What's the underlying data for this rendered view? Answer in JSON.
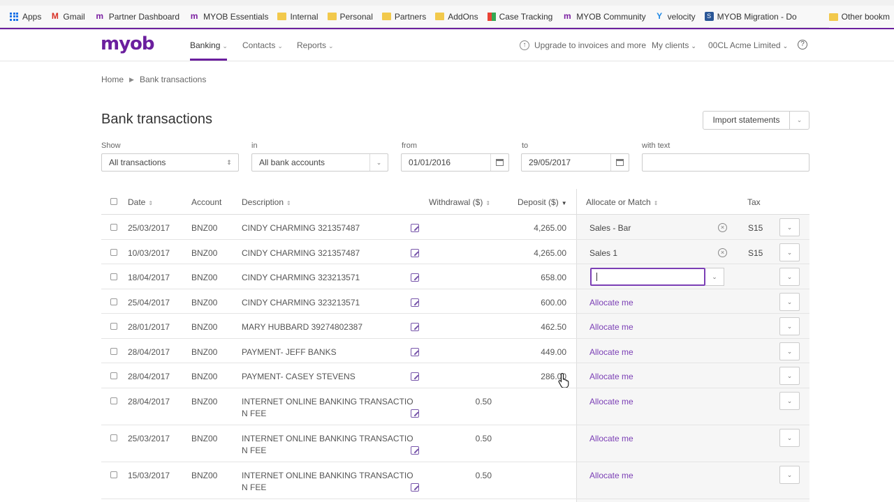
{
  "browser": {
    "bookmarks": [
      {
        "label": "Apps",
        "icon": "apps-grid-icon"
      },
      {
        "label": "Gmail",
        "icon": "gmail-icon"
      },
      {
        "label": "Partner Dashboard",
        "icon": "myob-m-icon"
      },
      {
        "label": "MYOB Essentials",
        "icon": "myob-m-icon"
      },
      {
        "label": "Internal",
        "icon": "folder-icon"
      },
      {
        "label": "Personal",
        "icon": "folder-icon"
      },
      {
        "label": "Partners",
        "icon": "folder-icon"
      },
      {
        "label": "AddOns",
        "icon": "folder-icon"
      },
      {
        "label": "Case Tracking",
        "icon": "grid-icon"
      },
      {
        "label": "MYOB Community",
        "icon": "myob-m-icon"
      },
      {
        "label": "velocity",
        "icon": "velocity-icon"
      },
      {
        "label": "MYOB Migration - Do",
        "icon": "migration-icon"
      }
    ],
    "other_bookmarks": "Other bookm"
  },
  "header": {
    "logo": "myob",
    "nav": {
      "banking": "Banking",
      "contacts": "Contacts",
      "reports": "Reports"
    },
    "upgrade": "Upgrade to invoices and more",
    "my_clients": "My clients",
    "company": "00CL Acme Limited",
    "help": "?"
  },
  "breadcrumb": {
    "home": "Home",
    "current": "Bank transactions"
  },
  "page": {
    "title": "Bank transactions",
    "import_button": "Import statements"
  },
  "filters": {
    "show": {
      "label": "Show",
      "value": "All transactions"
    },
    "in": {
      "label": "in",
      "value": "All bank accounts"
    },
    "from": {
      "label": "from",
      "value": "01/01/2016"
    },
    "to": {
      "label": "to",
      "value": "29/05/2017"
    },
    "with_text": {
      "label": "with text",
      "value": ""
    }
  },
  "table": {
    "headers": {
      "date": "Date",
      "account": "Account",
      "description": "Description",
      "withdrawal": "Withdrawal ($)",
      "deposit": "Deposit ($)",
      "allocate": "Allocate or Match",
      "tax": "Tax"
    },
    "rows": [
      {
        "date": "25/03/2017",
        "account": "BNZ00",
        "desc1": "CINDY CHARMING 321357487",
        "desc2": "",
        "withdrawal": "",
        "deposit": "4,265.00",
        "allocate": "Sales - Bar",
        "allocate_state": "allocated",
        "tax": "S15"
      },
      {
        "date": "10/03/2017",
        "account": "BNZ00",
        "desc1": "CINDY CHARMING 321357487",
        "desc2": "",
        "withdrawal": "",
        "deposit": "4,265.00",
        "allocate": "Sales 1",
        "allocate_state": "allocated",
        "tax": "S15"
      },
      {
        "date": "18/04/2017",
        "account": "BNZ00",
        "desc1": "CINDY CHARMING 323213571",
        "desc2": "",
        "withdrawal": "",
        "deposit": "658.00",
        "allocate": "",
        "allocate_state": "editing",
        "tax": ""
      },
      {
        "date": "25/04/2017",
        "account": "BNZ00",
        "desc1": "CINDY CHARMING 323213571",
        "desc2": "",
        "withdrawal": "",
        "deposit": "600.00",
        "allocate": "Allocate me",
        "allocate_state": "link",
        "tax": ""
      },
      {
        "date": "28/01/2017",
        "account": "BNZ00",
        "desc1": "MARY HUBBARD 39274802387",
        "desc2": "",
        "withdrawal": "",
        "deposit": "462.50",
        "allocate": "Allocate me",
        "allocate_state": "link",
        "tax": ""
      },
      {
        "date": "28/04/2017",
        "account": "BNZ00",
        "desc1": "PAYMENT- JEFF BANKS",
        "desc2": "",
        "withdrawal": "",
        "deposit": "449.00",
        "allocate": "Allocate me",
        "allocate_state": "link",
        "tax": ""
      },
      {
        "date": "28/04/2017",
        "account": "BNZ00",
        "desc1": "PAYMENT- CASEY STEVENS",
        "desc2": "",
        "withdrawal": "",
        "deposit": "286.00",
        "allocate": "Allocate me",
        "allocate_state": "link",
        "tax": ""
      },
      {
        "date": "28/04/2017",
        "account": "BNZ00",
        "desc1": "INTERNET ONLINE BANKING TRANSACTIO",
        "desc2": "N FEE",
        "withdrawal": "0.50",
        "deposit": "",
        "allocate": "Allocate me",
        "allocate_state": "link",
        "tax": ""
      },
      {
        "date": "25/03/2017",
        "account": "BNZ00",
        "desc1": "INTERNET ONLINE BANKING TRANSACTIO",
        "desc2": "N FEE",
        "withdrawal": "0.50",
        "deposit": "",
        "allocate": "Allocate me",
        "allocate_state": "link",
        "tax": ""
      },
      {
        "date": "15/03/2017",
        "account": "BNZ00",
        "desc1": "INTERNET ONLINE BANKING TRANSACTIO",
        "desc2": "N FEE",
        "withdrawal": "0.50",
        "deposit": "",
        "allocate": "Allocate me",
        "allocate_state": "link",
        "tax": ""
      }
    ]
  },
  "colors": {
    "brand": "#6b1f9e",
    "link": "#7b3fb5"
  }
}
